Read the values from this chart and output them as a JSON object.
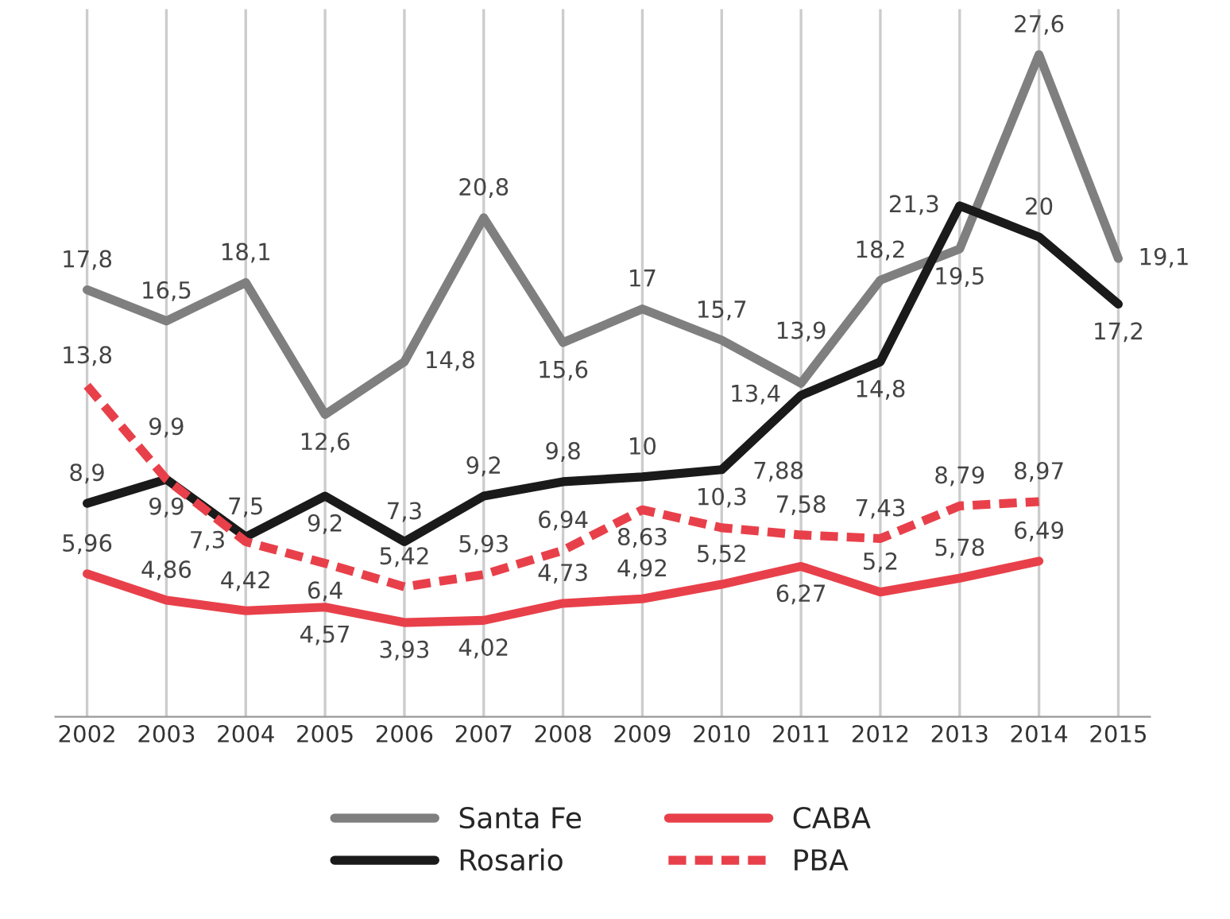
{
  "chart_data": {
    "type": "line",
    "categories": [
      "2002",
      "2003",
      "2004",
      "2005",
      "2006",
      "2007",
      "2008",
      "2009",
      "2010",
      "2011",
      "2012",
      "2013",
      "2014",
      "2015"
    ],
    "series": [
      {
        "name": "Santa Fe",
        "color": "#7f7f7f",
        "line_style": "solid",
        "values": [
          17.8,
          16.5,
          18.1,
          12.6,
          14.8,
          20.8,
          15.6,
          17,
          15.7,
          13.9,
          18.2,
          19.5,
          27.6,
          19.1
        ],
        "value_labels": [
          "17,8",
          "16,5",
          "18,1",
          "12,6",
          "14,8",
          "20,8",
          "15,6",
          "17",
          "15,7",
          "13,9",
          "18,2",
          "19,5",
          "27,6",
          "19,1"
        ]
      },
      {
        "name": "Rosario",
        "color": "#1a1a1a",
        "line_style": "solid",
        "values": [
          8.9,
          9.9,
          7.5,
          9.2,
          7.3,
          9.2,
          9.8,
          10,
          10.3,
          13.4,
          14.8,
          21.3,
          20,
          17.2
        ],
        "value_labels": [
          "8,9",
          "9,9",
          "7,5",
          "9,2",
          "7,3",
          "9,2",
          "9,8",
          "10",
          "10,3",
          "13,4",
          "14,8",
          "21,3",
          "20",
          "17,2"
        ]
      },
      {
        "name": "CABA",
        "color": "#e8404a",
        "line_style": "solid",
        "values": [
          5.96,
          4.86,
          4.42,
          4.57,
          3.93,
          4.02,
          4.73,
          4.92,
          5.52,
          6.27,
          5.2,
          5.78,
          6.49,
          null
        ],
        "value_labels": [
          "5,96",
          "4,86",
          "4,42",
          "4,57",
          "3,93",
          "4,02",
          "4,73",
          "4,92",
          "5,52",
          "6,27",
          "5,2",
          "5,78",
          "6,49",
          null
        ]
      },
      {
        "name": "PBA",
        "color": "#e8404a",
        "line_style": "dashed",
        "values": [
          13.8,
          9.9,
          7.3,
          6.4,
          5.42,
          5.93,
          6.94,
          8.63,
          7.88,
          7.58,
          7.43,
          8.79,
          8.97,
          null
        ],
        "value_labels": [
          "13,8",
          "9,9",
          "7,3",
          "6,4",
          "5,42",
          "5,93",
          "6,94",
          "8,63",
          "7,88",
          "7,58",
          "7,43",
          "8,79",
          "8,97",
          null
        ]
      }
    ],
    "grid": "x",
    "legend": "bottom",
    "marker": "none"
  }
}
